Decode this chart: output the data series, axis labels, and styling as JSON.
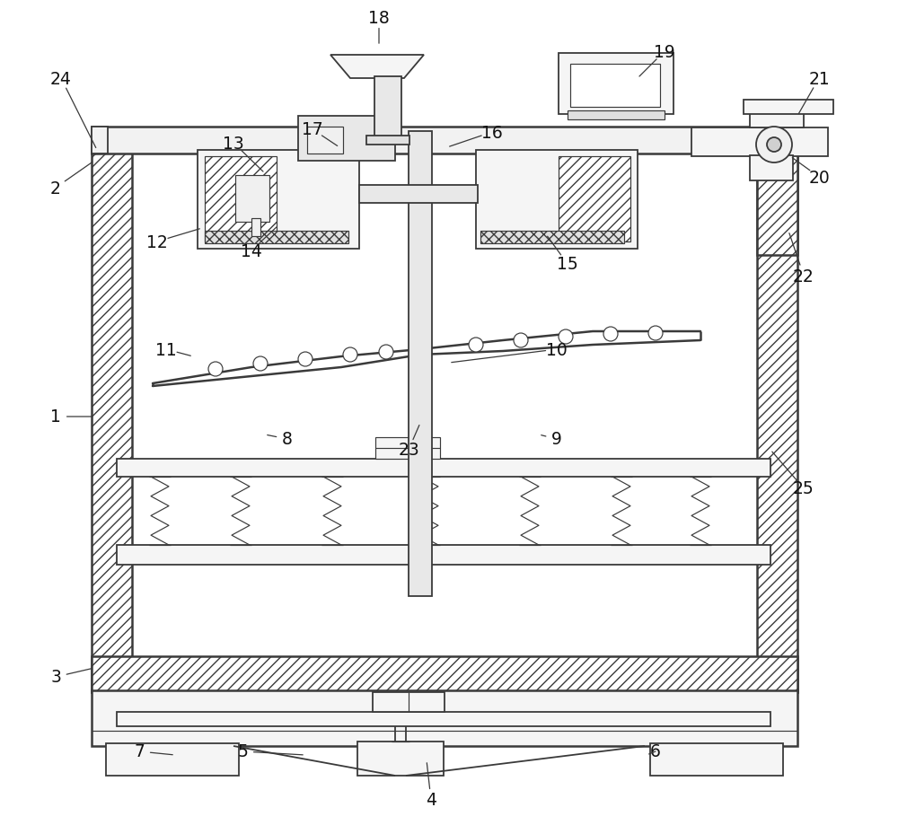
{
  "bg": "#ffffff",
  "lc": "#3a3a3a",
  "lw": 1.3,
  "lwt": 0.85,
  "lw2": 1.8,
  "fig_w": 10.0,
  "fig_h": 9.2,
  "labels": [
    [
      "1",
      62,
      455,
      105,
      455
    ],
    [
      "2",
      62,
      710,
      105,
      740
    ],
    [
      "3",
      62,
      165,
      105,
      175
    ],
    [
      "4",
      480,
      28,
      475,
      72
    ],
    [
      "5",
      270,
      82,
      340,
      78
    ],
    [
      "6",
      730,
      82,
      720,
      78
    ],
    [
      "7",
      155,
      82,
      195,
      78
    ],
    [
      "8",
      320,
      430,
      295,
      435
    ],
    [
      "9",
      620,
      430,
      600,
      435
    ],
    [
      "10",
      620,
      530,
      500,
      515
    ],
    [
      "11",
      185,
      530,
      215,
      522
    ],
    [
      "12",
      175,
      650,
      225,
      665
    ],
    [
      "13",
      260,
      760,
      295,
      726
    ],
    [
      "14",
      280,
      640,
      310,
      668
    ],
    [
      "15",
      632,
      625,
      608,
      658
    ],
    [
      "16",
      548,
      772,
      498,
      755
    ],
    [
      "17",
      348,
      775,
      378,
      755
    ],
    [
      "18",
      422,
      900,
      422,
      868
    ],
    [
      "19",
      740,
      862,
      710,
      832
    ],
    [
      "20",
      912,
      722,
      880,
      745
    ],
    [
      "21",
      912,
      832,
      888,
      790
    ],
    [
      "22",
      895,
      612,
      878,
      662
    ],
    [
      "23",
      455,
      418,
      468,
      448
    ],
    [
      "24",
      68,
      832,
      108,
      752
    ],
    [
      "25",
      895,
      375,
      858,
      418
    ]
  ]
}
